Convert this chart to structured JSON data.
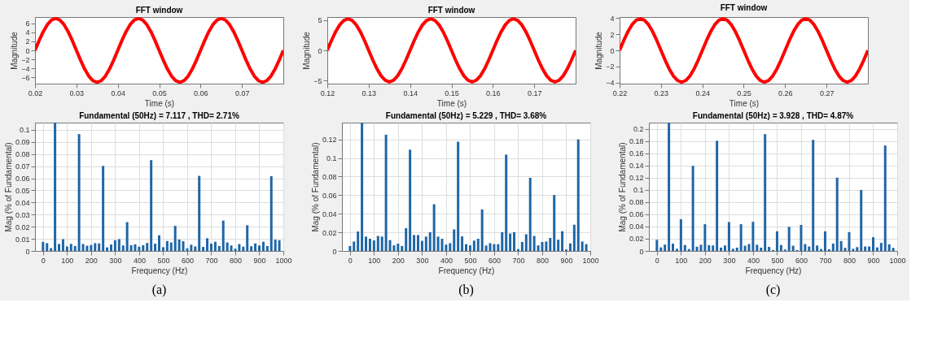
{
  "chart_data": [
    {
      "type": "line",
      "title": "FFT window",
      "xlabel": "Time (s)",
      "ylabel": "Magnitude",
      "xlim": [
        0.02,
        0.08
      ],
      "xticks": [
        0.02,
        0.03,
        0.04,
        0.05,
        0.06,
        0.07
      ],
      "ylim": [
        -7.4,
        7.4
      ],
      "yticks": [
        -6,
        -4,
        -2,
        0,
        2,
        4,
        6
      ],
      "x": [
        0.02,
        0.021,
        0.022,
        0.023,
        0.024,
        0.025,
        0.026,
        0.027,
        0.028,
        0.029,
        0.03,
        0.031,
        0.032,
        0.033,
        0.034,
        0.035,
        0.036,
        0.037,
        0.038,
        0.039,
        0.04,
        0.041,
        0.042,
        0.043,
        0.044,
        0.045,
        0.046,
        0.047,
        0.048,
        0.049,
        0.05,
        0.051,
        0.052,
        0.053,
        0.054,
        0.055,
        0.056,
        0.057,
        0.058,
        0.059,
        0.06,
        0.061,
        0.062,
        0.063,
        0.064,
        0.065,
        0.066,
        0.067,
        0.068,
        0.069,
        0.07,
        0.071,
        0.072,
        0.073,
        0.074,
        0.075,
        0.076,
        0.077,
        0.078,
        0.079,
        0.08
      ],
      "series": [
        {
          "color": "#ff0000",
          "values": [
            0,
            2.19,
            4.17,
            5.74,
            6.75,
            7.1,
            6.75,
            5.74,
            4.17,
            2.19,
            0,
            -2.19,
            -4.17,
            -5.74,
            -6.75,
            -7.1,
            -6.75,
            -5.74,
            -4.17,
            -2.19,
            0,
            2.19,
            4.17,
            5.74,
            6.75,
            7.1,
            6.75,
            5.74,
            4.17,
            2.19,
            0,
            -2.19,
            -4.17,
            -5.74,
            -6.75,
            -7.1,
            -6.75,
            -5.74,
            -4.17,
            -2.19,
            0,
            2.19,
            4.17,
            5.74,
            6.75,
            7.1,
            6.75,
            5.74,
            4.17,
            2.19,
            0,
            -2.19,
            -4.17,
            -5.74,
            -6.75,
            -7.1,
            -6.75,
            -5.74,
            -4.17,
            -2.19,
            0
          ]
        }
      ]
    },
    {
      "type": "line",
      "title": "FFT window",
      "xlabel": "Time (s)",
      "ylabel": "Magnitude",
      "xlim": [
        0.12,
        0.18
      ],
      "xticks": [
        0.12,
        0.13,
        0.14,
        0.15,
        0.16,
        0.17
      ],
      "ylim": [
        -5.5,
        5.5
      ],
      "yticks": [
        -5,
        0,
        5
      ],
      "x": [
        0.12,
        0.121,
        0.122,
        0.123,
        0.124,
        0.125,
        0.126,
        0.127,
        0.128,
        0.129,
        0.13,
        0.131,
        0.132,
        0.133,
        0.134,
        0.135,
        0.136,
        0.137,
        0.138,
        0.139,
        0.14,
        0.141,
        0.142,
        0.143,
        0.144,
        0.145,
        0.146,
        0.147,
        0.148,
        0.149,
        0.15,
        0.151,
        0.152,
        0.153,
        0.154,
        0.155,
        0.156,
        0.157,
        0.158,
        0.159,
        0.16,
        0.161,
        0.162,
        0.163,
        0.164,
        0.165,
        0.166,
        0.167,
        0.168,
        0.169,
        0.17,
        0.171,
        0.172,
        0.173,
        0.174,
        0.175,
        0.176,
        0.177,
        0.178,
        0.179,
        0.18
      ],
      "series": [
        {
          "color": "#ff0000",
          "values": [
            0,
            1.61,
            3.06,
            4.21,
            4.95,
            5.2,
            4.95,
            4.21,
            3.06,
            1.61,
            0,
            -1.61,
            -3.06,
            -4.21,
            -4.95,
            -5.2,
            -4.95,
            -4.21,
            -3.06,
            -1.61,
            0,
            1.61,
            3.06,
            4.21,
            4.95,
            5.2,
            4.95,
            4.21,
            3.06,
            1.61,
            0,
            -1.61,
            -3.06,
            -4.21,
            -4.95,
            -5.2,
            -4.95,
            -4.21,
            -3.06,
            -1.61,
            0,
            1.61,
            3.06,
            4.21,
            4.95,
            5.2,
            4.95,
            4.21,
            3.06,
            1.61,
            0,
            -1.61,
            -3.06,
            -4.21,
            -4.95,
            -5.2,
            -4.95,
            -4.21,
            -3.06,
            -1.61,
            0
          ]
        }
      ]
    },
    {
      "type": "line",
      "title": "FFT window",
      "xlabel": "Time (s)",
      "ylabel": "Magnitude",
      "xlim": [
        0.22,
        0.28
      ],
      "xticks": [
        0.22,
        0.23,
        0.24,
        0.25,
        0.26,
        0.27
      ],
      "ylim": [
        -4.15,
        4.15
      ],
      "yticks": [
        -4,
        -2,
        0,
        2,
        4
      ],
      "x": [
        0.22,
        0.221,
        0.222,
        0.223,
        0.224,
        0.225,
        0.226,
        0.227,
        0.228,
        0.229,
        0.23,
        0.231,
        0.232,
        0.233,
        0.234,
        0.235,
        0.236,
        0.237,
        0.238,
        0.239,
        0.24,
        0.241,
        0.242,
        0.243,
        0.244,
        0.245,
        0.246,
        0.247,
        0.248,
        0.249,
        0.25,
        0.251,
        0.252,
        0.253,
        0.254,
        0.255,
        0.256,
        0.257,
        0.258,
        0.259,
        0.26,
        0.261,
        0.262,
        0.263,
        0.264,
        0.265,
        0.266,
        0.267,
        0.268,
        0.269,
        0.27,
        0.271,
        0.272,
        0.273,
        0.274,
        0.275,
        0.276,
        0.277,
        0.278,
        0.279,
        0.28
      ],
      "series": [
        {
          "color": "#ff0000",
          "values": [
            0,
            1.22,
            2.32,
            3.2,
            3.76,
            3.95,
            3.76,
            3.2,
            2.32,
            1.22,
            0,
            -1.22,
            -2.32,
            -3.2,
            -3.76,
            -3.95,
            -3.76,
            -3.2,
            -2.32,
            -1.22,
            0,
            1.22,
            2.32,
            3.2,
            3.76,
            3.95,
            3.76,
            3.2,
            2.32,
            1.22,
            0,
            -1.22,
            -2.32,
            -3.2,
            -3.76,
            -3.95,
            -3.76,
            -3.2,
            -2.32,
            -1.22,
            0,
            1.22,
            2.32,
            3.2,
            3.76,
            3.95,
            3.76,
            3.2,
            2.32,
            1.22,
            0,
            -1.22,
            -2.32,
            -3.2,
            -3.76,
            -3.95,
            -3.76,
            -3.2,
            -2.32,
            -1.22,
            0
          ]
        }
      ]
    },
    {
      "type": "bar",
      "title": "Fundamental (50Hz) = 7.117 , THD= 2.71%",
      "xlabel": "Frequency (Hz)",
      "ylabel": "Mag (% of Fundamental)",
      "xlim": [
        -33.33,
        1000
      ],
      "xticks": [
        0,
        100,
        200,
        300,
        400,
        500,
        600,
        700,
        800,
        900,
        1000
      ],
      "ylim": [
        0,
        0.106
      ],
      "yticks": [
        0,
        0.01,
        0.02,
        0.03,
        0.04,
        0.05,
        0.06,
        0.07,
        0.08,
        0.09,
        0.1
      ],
      "grid": true,
      "annotations": [
        "(a)"
      ],
      "x": [
        0,
        16.67,
        33.33,
        50,
        66.67,
        83.33,
        100,
        116.67,
        133.33,
        150,
        166.67,
        183.33,
        200,
        216.67,
        233.33,
        250,
        266.67,
        283.33,
        300,
        316.67,
        333.33,
        350,
        366.67,
        383.33,
        400,
        416.67,
        433.33,
        450,
        466.67,
        483.33,
        500,
        516.67,
        533.33,
        550,
        566.67,
        583.33,
        600,
        616.67,
        633.33,
        650,
        666.67,
        683.33,
        700,
        716.67,
        733.33,
        750,
        766.67,
        783.33,
        800,
        816.67,
        833.33,
        850,
        866.67,
        883.33,
        900,
        916.67,
        933.33,
        950,
        966.67,
        983.33
      ],
      "series": [
        {
          "color": "#1f66a6",
          "values": [
            0.0075,
            0.0064,
            0.0023,
            0.106,
            0.0057,
            0.0097,
            0.0037,
            0.0058,
            0.0041,
            0.0965,
            0.0057,
            0.0043,
            0.0049,
            0.0064,
            0.0062,
            0.0702,
            0.0029,
            0.0053,
            0.0088,
            0.0097,
            0.0045,
            0.0238,
            0.0047,
            0.0055,
            0.0035,
            0.0047,
            0.0066,
            0.075,
            0.006,
            0.0129,
            0.0031,
            0.0082,
            0.007,
            0.0207,
            0.0094,
            0.008,
            0.0021,
            0.0051,
            0.0037,
            0.062,
            0.0033,
            0.0105,
            0.006,
            0.0076,
            0.0041,
            0.0251,
            0.007,
            0.0045,
            0.0018,
            0.0057,
            0.0035,
            0.0212,
            0.0039,
            0.0062,
            0.0045,
            0.0076,
            0.0041,
            0.0618,
            0.0093,
            0.0088
          ]
        }
      ]
    },
    {
      "type": "bar",
      "title": "Fundamental (50Hz) = 5.229 , THD= 3.68%",
      "xlabel": "Frequency (Hz)",
      "ylabel": "Mag (% of Fundamental)",
      "xlim": [
        -33.33,
        1000
      ],
      "xticks": [
        0,
        100,
        200,
        300,
        400,
        500,
        600,
        700,
        800,
        900,
        1000
      ],
      "ylim": [
        0,
        0.138
      ],
      "yticks": [
        0,
        0.02,
        0.04,
        0.06,
        0.08,
        0.1,
        0.12
      ],
      "grid": true,
      "annotations": [
        "(b)"
      ],
      "x": [
        0,
        16.67,
        33.33,
        50,
        66.67,
        83.33,
        100,
        116.67,
        133.33,
        150,
        166.67,
        183.33,
        200,
        216.67,
        233.33,
        250,
        266.67,
        283.33,
        300,
        316.67,
        333.33,
        350,
        366.67,
        383.33,
        400,
        416.67,
        433.33,
        450,
        466.67,
        483.33,
        500,
        516.67,
        533.33,
        550,
        566.67,
        583.33,
        600,
        616.67,
        633.33,
        650,
        666.67,
        683.33,
        700,
        716.67,
        733.33,
        750,
        766.67,
        783.33,
        800,
        816.67,
        833.33,
        850,
        866.67,
        883.33,
        900,
        916.67,
        933.33,
        950,
        966.67,
        983.33
      ],
      "series": [
        {
          "color": "#1f66a6",
          "values": [
            0.0053,
            0.0101,
            0.0209,
            0.138,
            0.0154,
            0.0131,
            0.0113,
            0.0161,
            0.0154,
            0.125,
            0.0116,
            0.006,
            0.0078,
            0.0053,
            0.0245,
            0.1089,
            0.0171,
            0.0171,
            0.0108,
            0.0154,
            0.0202,
            0.0502,
            0.0154,
            0.0131,
            0.0068,
            0.0083,
            0.0232,
            0.1175,
            0.0156,
            0.0073,
            0.006,
            0.0111,
            0.0131,
            0.0446,
            0.0058,
            0.0083,
            0.0073,
            0.0073,
            0.0202,
            0.1036,
            0.0187,
            0.0202,
            0.002,
            0.0096,
            0.0179,
            0.0786,
            0.0161,
            0.006,
            0.0096,
            0.0101,
            0.0139,
            0.0602,
            0.0121,
            0.0212,
            0.0015,
            0.0081,
            0.0282,
            0.12,
            0.0101,
            0.0073
          ]
        }
      ]
    },
    {
      "type": "bar",
      "title": "Fundamental (50Hz) = 3.928 , THD= 4.87%",
      "xlabel": "Frequency (Hz)",
      "ylabel": "Mag (% of Fundamental)",
      "xlim": [
        -33.33,
        1000
      ],
      "xticks": [
        0,
        100,
        200,
        300,
        400,
        500,
        600,
        700,
        800,
        900,
        1000
      ],
      "ylim": [
        0,
        0.21
      ],
      "yticks": [
        0,
        0.02,
        0.04,
        0.06,
        0.08,
        0.1,
        0.12,
        0.14,
        0.16,
        0.18,
        0.2
      ],
      "grid": true,
      "annotations": [
        "(c)"
      ],
      "x": [
        0,
        16.67,
        33.33,
        50,
        66.67,
        83.33,
        100,
        116.67,
        133.33,
        150,
        166.67,
        183.33,
        200,
        216.67,
        233.33,
        250,
        266.67,
        283.33,
        300,
        316.67,
        333.33,
        350,
        366.67,
        383.33,
        400,
        416.67,
        433.33,
        450,
        466.67,
        483.33,
        500,
        516.67,
        533.33,
        550,
        566.67,
        583.33,
        600,
        616.67,
        633.33,
        650,
        666.67,
        683.33,
        700,
        716.67,
        733.33,
        750,
        766.67,
        783.33,
        800,
        816.67,
        833.33,
        850,
        866.67,
        883.33,
        900,
        916.67,
        933.33,
        950,
        966.67,
        983.33
      ],
      "series": [
        {
          "color": "#1f66a6",
          "values": [
            0.0182,
            0.0058,
            0.0104,
            0.21,
            0.012,
            0.0035,
            0.0518,
            0.0097,
            0.0031,
            0.1393,
            0.007,
            0.0101,
            0.0437,
            0.0093,
            0.0089,
            0.1803,
            0.0054,
            0.0089,
            0.0472,
            0.0035,
            0.0054,
            0.0437,
            0.0085,
            0.0112,
            0.0476,
            0.0101,
            0.0054,
            0.1911,
            0.0066,
            0.0015,
            0.0321,
            0.0097,
            0.0023,
            0.0395,
            0.0085,
            0.0015,
            0.0426,
            0.0112,
            0.0073,
            0.1818,
            0.0089,
            0.0031,
            0.0321,
            0.0027,
            0.012,
            0.1199,
            0.0162,
            0.005,
            0.0309,
            0.0035,
            0.0062,
            0.0998,
            0.0073,
            0.0073,
            0.0224,
            0.0058,
            0.0131,
            0.1725,
            0.0108,
            0.005
          ]
        }
      ]
    }
  ]
}
